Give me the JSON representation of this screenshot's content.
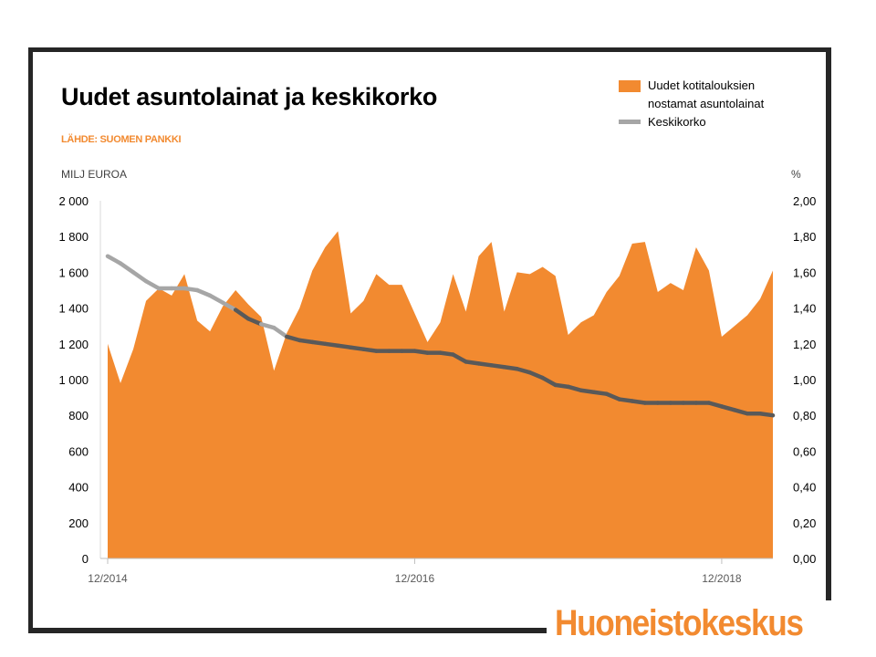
{
  "title": "Uudet asuntolainat ja keskikorko",
  "source": "LÄHDE: SUOMEN PANKKI",
  "unit_left": "MILJ EUROA",
  "unit_right": "%",
  "logo_text": "Huoneistokeskus",
  "colors": {
    "area": "#f28a30",
    "line_light": "#a6a6a6",
    "line_dark": "#595959",
    "frame": "#262626",
    "accent": "#f28a30"
  },
  "chart_data": {
    "type": "area",
    "legend_position": "top-right",
    "series": [
      {
        "name": "Uudet kotitalouksien nostamat asuntolainat",
        "type": "area",
        "axis": "left",
        "values": [
          1200,
          980,
          1170,
          1440,
          1510,
          1470,
          1590,
          1330,
          1270,
          1410,
          1500,
          1420,
          1350,
          1050,
          1260,
          1400,
          1610,
          1740,
          1830,
          1370,
          1440,
          1590,
          1530,
          1530,
          1370,
          1210,
          1320,
          1590,
          1380,
          1690,
          1770,
          1380,
          1600,
          1590,
          1630,
          1580,
          1250,
          1320,
          1360,
          1490,
          1580,
          1760,
          1770,
          1490,
          1540,
          1500,
          1740,
          1610,
          1240,
          1300,
          1360,
          1450,
          1610
        ]
      },
      {
        "name": "Keskikorko",
        "type": "line",
        "axis": "right",
        "values": [
          1.69,
          1.65,
          1.6,
          1.55,
          1.51,
          1.51,
          1.51,
          1.5,
          1.47,
          1.43,
          1.39,
          1.34,
          1.31,
          1.29,
          1.24,
          1.22,
          1.21,
          1.2,
          1.19,
          1.18,
          1.17,
          1.16,
          1.16,
          1.16,
          1.16,
          1.15,
          1.15,
          1.14,
          1.1,
          1.09,
          1.08,
          1.07,
          1.06,
          1.04,
          1.01,
          0.97,
          0.96,
          0.94,
          0.93,
          0.92,
          0.89,
          0.88,
          0.87,
          0.87,
          0.87,
          0.87,
          0.87,
          0.87,
          0.85,
          0.83,
          0.81,
          0.81,
          0.8
        ]
      }
    ],
    "x_tick_labels": [
      "12/2014",
      "12/2016",
      "12/2018"
    ],
    "x_tick_indices": [
      0,
      24,
      48
    ],
    "y_left": {
      "min": 0,
      "max": 2000,
      "ticks": [
        "0",
        "200",
        "400",
        "600",
        "800",
        "1 000",
        "1 200",
        "1 400",
        "1 600",
        "1 800",
        "2 000"
      ]
    },
    "y_right": {
      "min": 0,
      "max": 2.0,
      "ticks": [
        "0,00",
        "0,20",
        "0,40",
        "0,60",
        "0,80",
        "1,00",
        "1,20",
        "1,40",
        "1,60",
        "1,80",
        "2,00"
      ]
    },
    "grid": false
  }
}
